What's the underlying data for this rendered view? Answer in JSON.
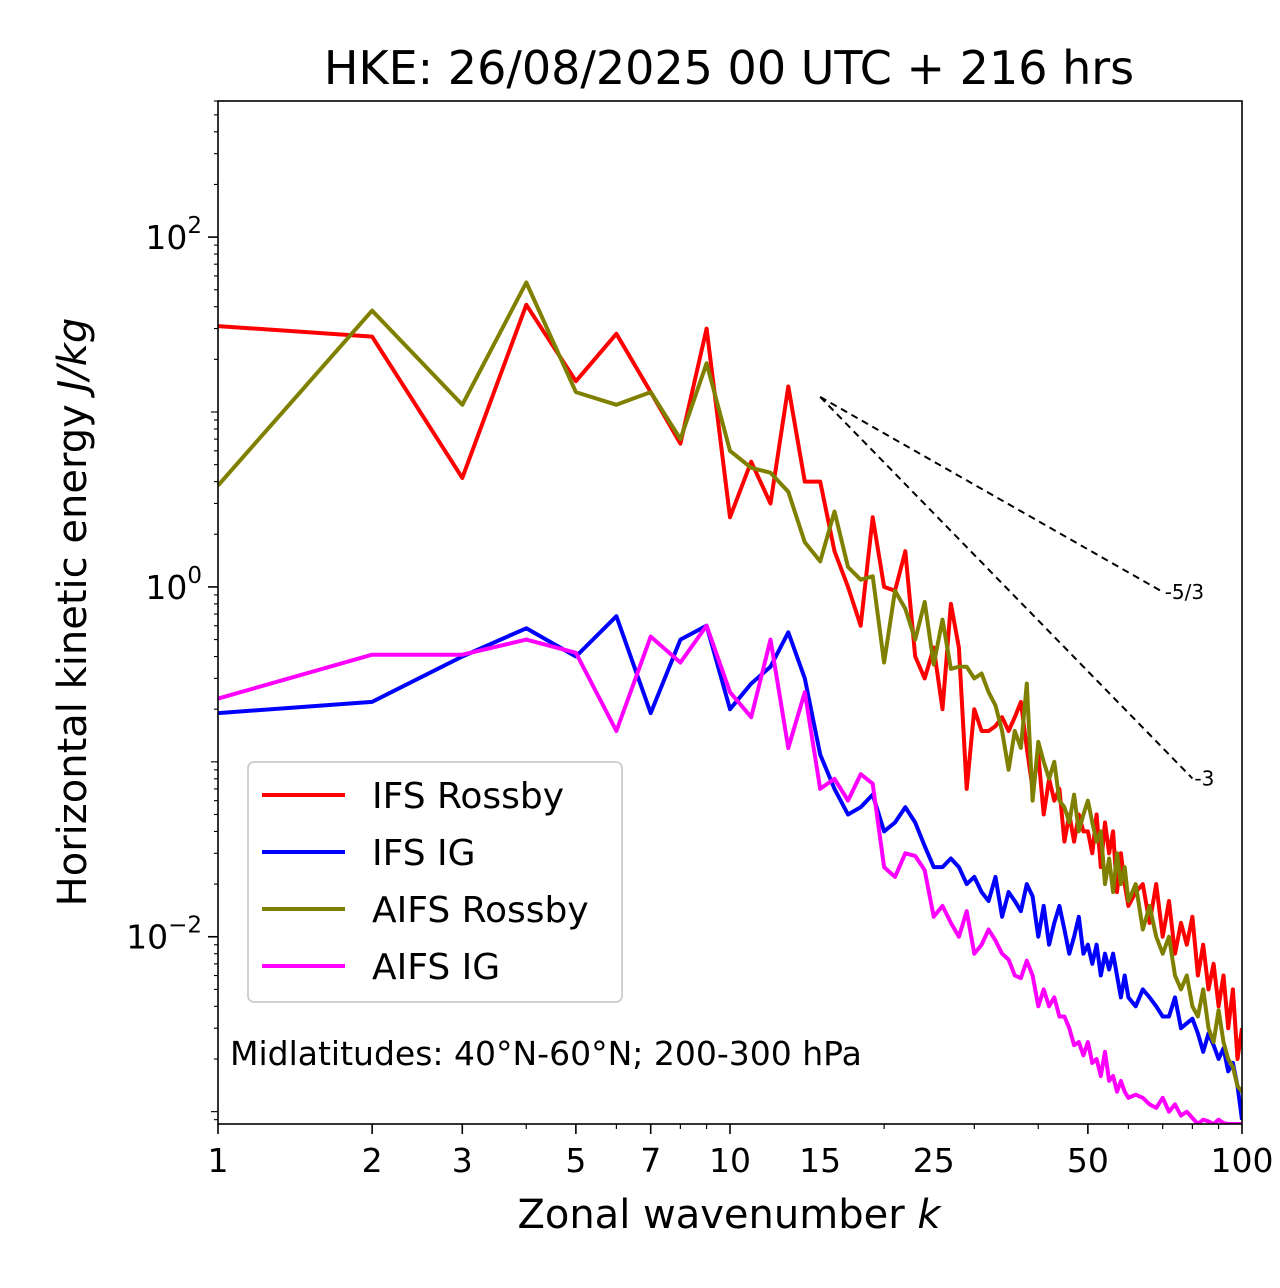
{
  "chart_data": {
    "type": "line",
    "title": "HKE: 26/08/2025 00 UTC + 216 hrs",
    "xlabel": "Zonal wavenumber",
    "xlabel_italic": "k",
    "ylabel": "Horizontal kinetic energy",
    "ylabel_italic": "J/kg",
    "xscale": "log",
    "yscale": "log",
    "xlim": [
      1,
      100
    ],
    "ylim": [
      0.00085,
      600
    ],
    "xticks": [
      {
        "value": 1,
        "label": "1"
      },
      {
        "value": 2,
        "label": "2"
      },
      {
        "value": 3,
        "label": "3"
      },
      {
        "value": 5,
        "label": "5"
      },
      {
        "value": 7,
        "label": "7"
      },
      {
        "value": 10,
        "label": "10"
      },
      {
        "value": 15,
        "label": "15"
      },
      {
        "value": 25,
        "label": "25"
      },
      {
        "value": 50,
        "label": "50"
      },
      {
        "value": 100,
        "label": "100"
      }
    ],
    "yticks": [
      {
        "value": 100,
        "base": "10",
        "exp": "2"
      },
      {
        "value": 1,
        "base": "10",
        "exp": "0"
      },
      {
        "value": 0.01,
        "base": "10",
        "exp": "−2"
      }
    ],
    "annotation": "Midlatitudes: 40°N-60°N; 200-300 hPa",
    "legend": {
      "position": "lower-left"
    },
    "reference_lines": [
      {
        "label": "-5/3",
        "slope": -1.6667,
        "x": [
          15,
          70
        ],
        "y_start": 12.2
      },
      {
        "label": "-3",
        "slope": -3,
        "x": [
          15,
          80
        ],
        "y_start": 12.2
      }
    ],
    "series": [
      {
        "name": "IFS Rossby",
        "color": "#ff0000",
        "x": [
          1,
          2,
          3,
          4,
          5,
          6,
          7,
          8,
          9,
          10,
          11,
          12,
          13,
          14,
          15,
          16,
          17,
          18,
          19,
          20,
          21,
          22,
          23,
          24,
          25,
          26,
          27,
          28,
          29,
          30,
          31,
          32,
          33,
          34,
          35,
          36,
          37,
          38,
          39,
          40,
          41,
          42,
          43,
          44,
          45,
          46,
          47,
          48,
          49,
          50,
          51,
          52,
          53,
          54,
          55,
          56,
          57,
          58,
          59,
          60,
          62,
          64,
          66,
          68,
          70,
          72,
          74,
          76,
          78,
          80,
          82,
          84,
          86,
          88,
          90,
          92,
          94,
          96,
          98,
          100
        ],
        "y": [
          31,
          27,
          4.2,
          41,
          15,
          28,
          13,
          6.6,
          30,
          2.5,
          5.2,
          3,
          14,
          4,
          4,
          1.6,
          1,
          0.6,
          2.5,
          1,
          0.95,
          1.6,
          0.4,
          0.3,
          0.45,
          0.2,
          0.8,
          0.45,
          0.07,
          0.2,
          0.15,
          0.15,
          0.16,
          0.18,
          0.15,
          0.18,
          0.22,
          0.12,
          0.07,
          0.11,
          0.05,
          0.08,
          0.06,
          0.07,
          0.035,
          0.05,
          0.035,
          0.05,
          0.04,
          0.04,
          0.03,
          0.05,
          0.025,
          0.045,
          0.03,
          0.04,
          0.018,
          0.03,
          0.02,
          0.015,
          0.018,
          0.02,
          0.012,
          0.02,
          0.01,
          0.016,
          0.008,
          0.012,
          0.009,
          0.013,
          0.006,
          0.009,
          0.005,
          0.007,
          0.004,
          0.006,
          0.003,
          0.005,
          0.002,
          0.003
        ]
      },
      {
        "name": "IFS IG",
        "color": "#0000ff",
        "x": [
          1,
          2,
          3,
          4,
          5,
          6,
          7,
          8,
          9,
          10,
          11,
          12,
          13,
          14,
          15,
          16,
          17,
          18,
          19,
          20,
          21,
          22,
          23,
          24,
          25,
          26,
          27,
          28,
          29,
          30,
          31,
          32,
          33,
          34,
          35,
          36,
          37,
          38,
          39,
          40,
          41,
          42,
          43,
          44,
          45,
          46,
          47,
          48,
          49,
          50,
          51,
          52,
          53,
          54,
          55,
          56,
          57,
          58,
          59,
          60,
          62,
          64,
          66,
          68,
          70,
          72,
          74,
          76,
          78,
          80,
          82,
          84,
          86,
          88,
          90,
          92,
          94,
          96,
          98,
          100
        ],
        "y": [
          0.19,
          0.22,
          0.4,
          0.58,
          0.4,
          0.68,
          0.19,
          0.5,
          0.6,
          0.2,
          0.28,
          0.35,
          0.55,
          0.3,
          0.11,
          0.07,
          0.05,
          0.055,
          0.065,
          0.04,
          0.045,
          0.055,
          0.045,
          0.033,
          0.025,
          0.025,
          0.028,
          0.025,
          0.02,
          0.022,
          0.018,
          0.016,
          0.022,
          0.013,
          0.018,
          0.016,
          0.014,
          0.02,
          0.017,
          0.01,
          0.015,
          0.009,
          0.012,
          0.015,
          0.011,
          0.008,
          0.01,
          0.013,
          0.008,
          0.009,
          0.007,
          0.009,
          0.006,
          0.008,
          0.0065,
          0.008,
          0.006,
          0.0045,
          0.006,
          0.0045,
          0.004,
          0.005,
          0.0045,
          0.004,
          0.0035,
          0.0035,
          0.0045,
          0.003,
          0.0032,
          0.0034,
          0.0028,
          0.0022,
          0.0028,
          0.0024,
          0.002,
          0.0023,
          0.0017,
          0.0019,
          0.0014,
          0.0009
        ]
      },
      {
        "name": "AIFS Rossby",
        "color": "#808000",
        "x": [
          1,
          2,
          3,
          4,
          5,
          6,
          7,
          8,
          9,
          10,
          11,
          12,
          13,
          14,
          15,
          16,
          17,
          18,
          19,
          20,
          21,
          22,
          23,
          24,
          25,
          26,
          27,
          28,
          29,
          30,
          31,
          32,
          33,
          34,
          35,
          36,
          37,
          38,
          39,
          40,
          41,
          42,
          43,
          44,
          45,
          46,
          47,
          48,
          49,
          50,
          51,
          52,
          53,
          54,
          55,
          56,
          57,
          58,
          59,
          60,
          62,
          64,
          66,
          68,
          70,
          72,
          74,
          76,
          78,
          80,
          82,
          84,
          86,
          88,
          90,
          92,
          94,
          96,
          98,
          100
        ],
        "y": [
          3.8,
          38,
          11,
          55,
          13,
          11,
          13,
          7,
          19,
          6,
          4.8,
          4.5,
          3.5,
          1.8,
          1.4,
          2.7,
          1.3,
          1.1,
          1.15,
          0.37,
          0.95,
          0.75,
          0.5,
          0.82,
          0.36,
          0.65,
          0.34,
          0.35,
          0.35,
          0.3,
          0.32,
          0.25,
          0.21,
          0.15,
          0.09,
          0.15,
          0.12,
          0.28,
          0.06,
          0.13,
          0.1,
          0.08,
          0.1,
          0.06,
          0.055,
          0.045,
          0.065,
          0.04,
          0.05,
          0.06,
          0.045,
          0.035,
          0.04,
          0.02,
          0.028,
          0.018,
          0.03,
          0.02,
          0.025,
          0.016,
          0.02,
          0.011,
          0.015,
          0.01,
          0.008,
          0.01,
          0.006,
          0.005,
          0.006,
          0.004,
          0.0035,
          0.005,
          0.003,
          0.0025,
          0.0038,
          0.0025,
          0.002,
          0.0018,
          0.0014,
          0.0013
        ]
      },
      {
        "name": "AIFS IG",
        "color": "#ff00ff",
        "x": [
          1,
          2,
          3,
          4,
          5,
          6,
          7,
          8,
          9,
          10,
          11,
          12,
          13,
          14,
          15,
          16,
          17,
          18,
          19,
          20,
          21,
          22,
          23,
          24,
          25,
          26,
          27,
          28,
          29,
          30,
          31,
          32,
          33,
          34,
          35,
          36,
          37,
          38,
          39,
          40,
          41,
          42,
          43,
          44,
          45,
          46,
          47,
          48,
          49,
          50,
          51,
          52,
          53,
          54,
          55,
          56,
          57,
          58,
          59,
          60,
          62,
          64,
          66,
          68,
          70,
          72,
          74,
          76,
          78,
          80,
          82,
          84,
          86,
          88,
          90,
          92,
          94,
          96,
          98,
          100
        ],
        "y": [
          0.23,
          0.41,
          0.41,
          0.5,
          0.42,
          0.15,
          0.52,
          0.37,
          0.6,
          0.25,
          0.18,
          0.5,
          0.12,
          0.25,
          0.07,
          0.08,
          0.06,
          0.085,
          0.075,
          0.025,
          0.022,
          0.03,
          0.029,
          0.024,
          0.013,
          0.015,
          0.012,
          0.01,
          0.014,
          0.008,
          0.009,
          0.011,
          0.0095,
          0.008,
          0.0074,
          0.006,
          0.0058,
          0.0073,
          0.006,
          0.004,
          0.005,
          0.004,
          0.0045,
          0.0035,
          0.0035,
          0.003,
          0.0024,
          0.0025,
          0.0021,
          0.0025,
          0.0019,
          0.002,
          0.0016,
          0.0022,
          0.0015,
          0.0016,
          0.0013,
          0.0015,
          0.0013,
          0.0012,
          0.00125,
          0.0012,
          0.0011,
          0.00105,
          0.0012,
          0.001,
          0.0011,
          0.00095,
          0.001,
          0.00092,
          0.00085,
          0.0009,
          0.00088,
          0.00085,
          0.0009,
          0.00086,
          0.00085,
          0.00085,
          0.00085,
          0.00085
        ]
      }
    ]
  }
}
